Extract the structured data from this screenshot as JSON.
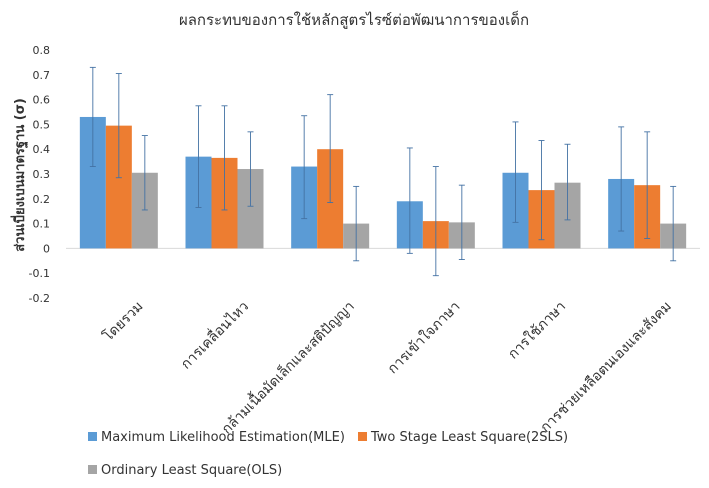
{
  "chart_data": {
    "type": "bar",
    "title": "ผลกระทบของการใช้หลักสูตรไรซ์ต่อพัฒนาการของเด็ก",
    "xlabel": "",
    "ylabel": "ส่วนเบี่ยงเบนมาตรฐาน (σ)",
    "ylim": [
      -0.2,
      0.8
    ],
    "yticks": [
      -0.2,
      -0.1,
      0,
      0.1,
      0.2,
      0.3,
      0.4,
      0.5,
      0.6,
      0.7,
      0.8
    ],
    "ytick_labels": [
      "-0.2",
      "-0.1",
      "0",
      "0.1",
      "0.2",
      "0.3",
      "0.4",
      "0.5",
      "0.6",
      "0.7",
      "0.8"
    ],
    "grid": false,
    "legend_position": "bottom",
    "categories": [
      "โดยรวม",
      "การเคลื่อนไหว",
      "กล้ามเนื้อมัดเล็กและสติปัญญา",
      "การเข้าใจภาษา",
      "การใช้ภาษา",
      "การช่วยเหลือตนเองและสังคม"
    ],
    "series": [
      {
        "name": "Maximum Likelihood Estimation(MLE)",
        "color": "#5b9bd5",
        "values": [
          0.53,
          0.37,
          0.33,
          0.19,
          0.305,
          0.28
        ],
        "error_low": [
          0.33,
          0.165,
          0.12,
          -0.02,
          0.105,
          0.07
        ],
        "error_high": [
          0.73,
          0.575,
          0.535,
          0.405,
          0.51,
          0.49
        ]
      },
      {
        "name": "Two Stage Least Square(2SLS)",
        "color": "#ed7d31",
        "values": [
          0.495,
          0.365,
          0.4,
          0.11,
          0.235,
          0.255
        ],
        "error_low": [
          0.285,
          0.155,
          0.185,
          -0.11,
          0.035,
          0.04
        ],
        "error_high": [
          0.705,
          0.575,
          0.62,
          0.33,
          0.435,
          0.47
        ]
      },
      {
        "name": "Ordinary Least Square(OLS)",
        "color": "#a5a5a5",
        "values": [
          0.305,
          0.32,
          0.1,
          0.105,
          0.265,
          0.1
        ],
        "error_low": [
          0.155,
          0.17,
          -0.05,
          -0.045,
          0.115,
          -0.05
        ],
        "error_high": [
          0.455,
          0.47,
          0.25,
          0.255,
          0.42,
          0.25
        ]
      }
    ],
    "error_bar_color": "#4472a4",
    "zero_line_color": "#d9d9d9"
  }
}
